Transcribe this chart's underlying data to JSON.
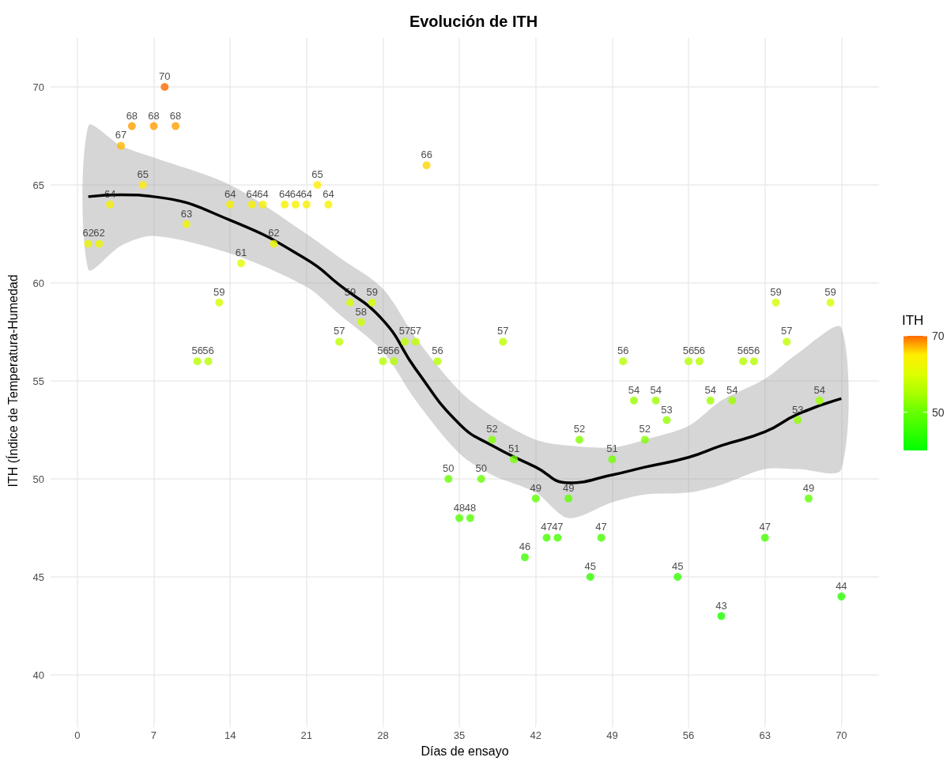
{
  "chart_data": {
    "type": "scatter",
    "title": "Evolución de ITH",
    "xlabel": "Días de ensayo",
    "ylabel": "ITH (Índice de Temperatura-Humedad",
    "clabel": "ITH",
    "x": [
      1,
      2,
      3,
      4,
      5,
      6,
      7,
      8,
      9,
      10,
      11,
      12,
      13,
      14,
      15,
      16,
      17,
      18,
      19,
      20,
      21,
      22,
      23,
      24,
      25,
      26,
      27,
      28,
      29,
      30,
      31,
      32,
      33,
      34,
      35,
      36,
      37,
      38,
      39,
      40,
      41,
      42,
      43,
      44,
      45,
      46,
      47,
      48,
      49,
      50,
      51,
      52,
      53,
      54,
      55,
      56,
      57,
      58,
      59,
      60,
      61,
      62,
      63,
      64,
      65,
      66,
      67,
      68,
      69,
      70
    ],
    "series": [
      {
        "marker": "circle",
        "colors": [
          "#ebf800",
          "#ebf800",
          "#f8f100",
          "#ffb900",
          "#ff9f00",
          "#ffee00",
          "#ff9f00",
          "#ff6a00",
          "#ff9f00",
          "#f1f500",
          "#b4ff00",
          "#b4ff00",
          "#d3ff00",
          "#f8f100",
          "#e4fc00",
          "#f8f100",
          "#f8f100",
          "#ebf800",
          "#f8f100",
          "#f8f100",
          "#f8f100",
          "#ffee00",
          "#f8f100",
          "#bfff00",
          "#d3ff00",
          "#c9ff00",
          "#d3ff00",
          "#b4ff00",
          "#b4ff00",
          "#bfff00",
          "#bfff00",
          "#ffd400",
          "#b4ff00",
          "#66ff00",
          "#52ff00",
          "#52ff00",
          "#66ff00",
          "#81ff00",
          "#bfff00",
          "#74ff00",
          "#3dff00",
          "#5cff00",
          "#47ff00",
          "#47ff00",
          "#5cff00",
          "#81ff00",
          "#33ff00",
          "#47ff00",
          "#74ff00",
          "#b4ff00",
          "#9cff00",
          "#81ff00",
          "#9cff00",
          "#8fff00",
          "#33ff00",
          "#b4ff00",
          "#b4ff00",
          "#9cff00",
          "#1fff00",
          "#9cff00",
          "#b4ff00",
          "#b4ff00",
          "#47ff00",
          "#d3ff00",
          "#bfff00",
          "#8fff00",
          "#5cff00",
          "#9cff00",
          "#d3ff00",
          "#29ff00"
        ],
        "values": [
          62,
          62,
          64,
          67,
          68,
          65,
          68,
          70,
          68,
          63,
          56,
          56,
          59,
          64,
          61,
          64,
          64,
          62,
          64,
          64,
          64,
          65,
          64,
          57,
          59,
          58,
          59,
          56,
          56,
          57,
          57,
          66,
          56,
          50,
          48,
          48,
          50,
          52,
          57,
          51,
          46,
          49,
          47,
          47,
          49,
          52,
          45,
          47,
          51,
          56,
          54,
          52,
          54,
          53,
          45,
          56,
          56,
          54,
          43,
          54,
          56,
          56,
          47,
          59,
          57,
          53,
          49,
          54,
          59,
          44
        ],
        "value_labels": [
          "62",
          "62",
          "64",
          "67",
          "68",
          "65",
          "68",
          "70",
          "68",
          "63",
          "56",
          "56",
          "59",
          "64",
          "61",
          "64",
          "64",
          "62",
          "64",
          "64",
          "64",
          "65",
          "64",
          "57",
          "59",
          "58",
          "59",
          "56",
          "56",
          "57",
          "57",
          "66",
          "56",
          "50",
          "48",
          "48",
          "50",
          "52",
          "57",
          "51",
          "46",
          "49",
          "47",
          "47",
          "49",
          "52",
          "45",
          "47",
          "51",
          "56",
          "54",
          "52",
          "54",
          "53",
          "45",
          "56",
          "56",
          "54",
          "43",
          "54",
          "56",
          "56",
          "47",
          "59",
          "57",
          "53",
          "49",
          "54",
          "59",
          "44"
        ]
      },
      {
        "type": "line",
        "marker": "none",
        "color": "#000000",
        "x": [
          1,
          4,
          7,
          14,
          21,
          24,
          28,
          31,
          35,
          38,
          42,
          45,
          49,
          52,
          56,
          59,
          63,
          66,
          70
        ],
        "values": [
          64.4,
          64.5,
          64.4,
          63.2,
          61.2,
          59.9,
          58.1,
          55.6,
          52.8,
          51.7,
          50.6,
          49.8,
          50.2,
          50.6,
          51.1,
          51.7,
          52.4,
          53.3,
          54.1
        ],
        "lower": [
          60.7,
          61.9,
          62.4,
          61.5,
          59.8,
          58.4,
          56.5,
          54.0,
          51.3,
          50.2,
          49.3,
          48.0,
          48.8,
          49.2,
          49.3,
          49.7,
          50.5,
          50.5,
          50.5
        ],
        "upper": [
          68.0,
          67.0,
          66.4,
          65.0,
          62.5,
          61.3,
          59.7,
          57.2,
          54.5,
          53.2,
          52.0,
          51.7,
          51.6,
          52.0,
          52.7,
          54.0,
          55.1,
          56.4,
          57.7
        ]
      }
    ],
    "xlim": [
      -2.45,
      73.45
    ],
    "xticks": [
      0,
      7,
      14,
      21,
      28,
      35,
      42,
      49,
      56,
      63,
      70
    ],
    "ylim": [
      37.5,
      72.5
    ],
    "yticks": [
      40,
      45,
      50,
      55,
      60,
      65,
      70
    ],
    "clim": [
      40,
      70
    ],
    "cticks": [
      50,
      70
    ],
    "grid": true
  }
}
